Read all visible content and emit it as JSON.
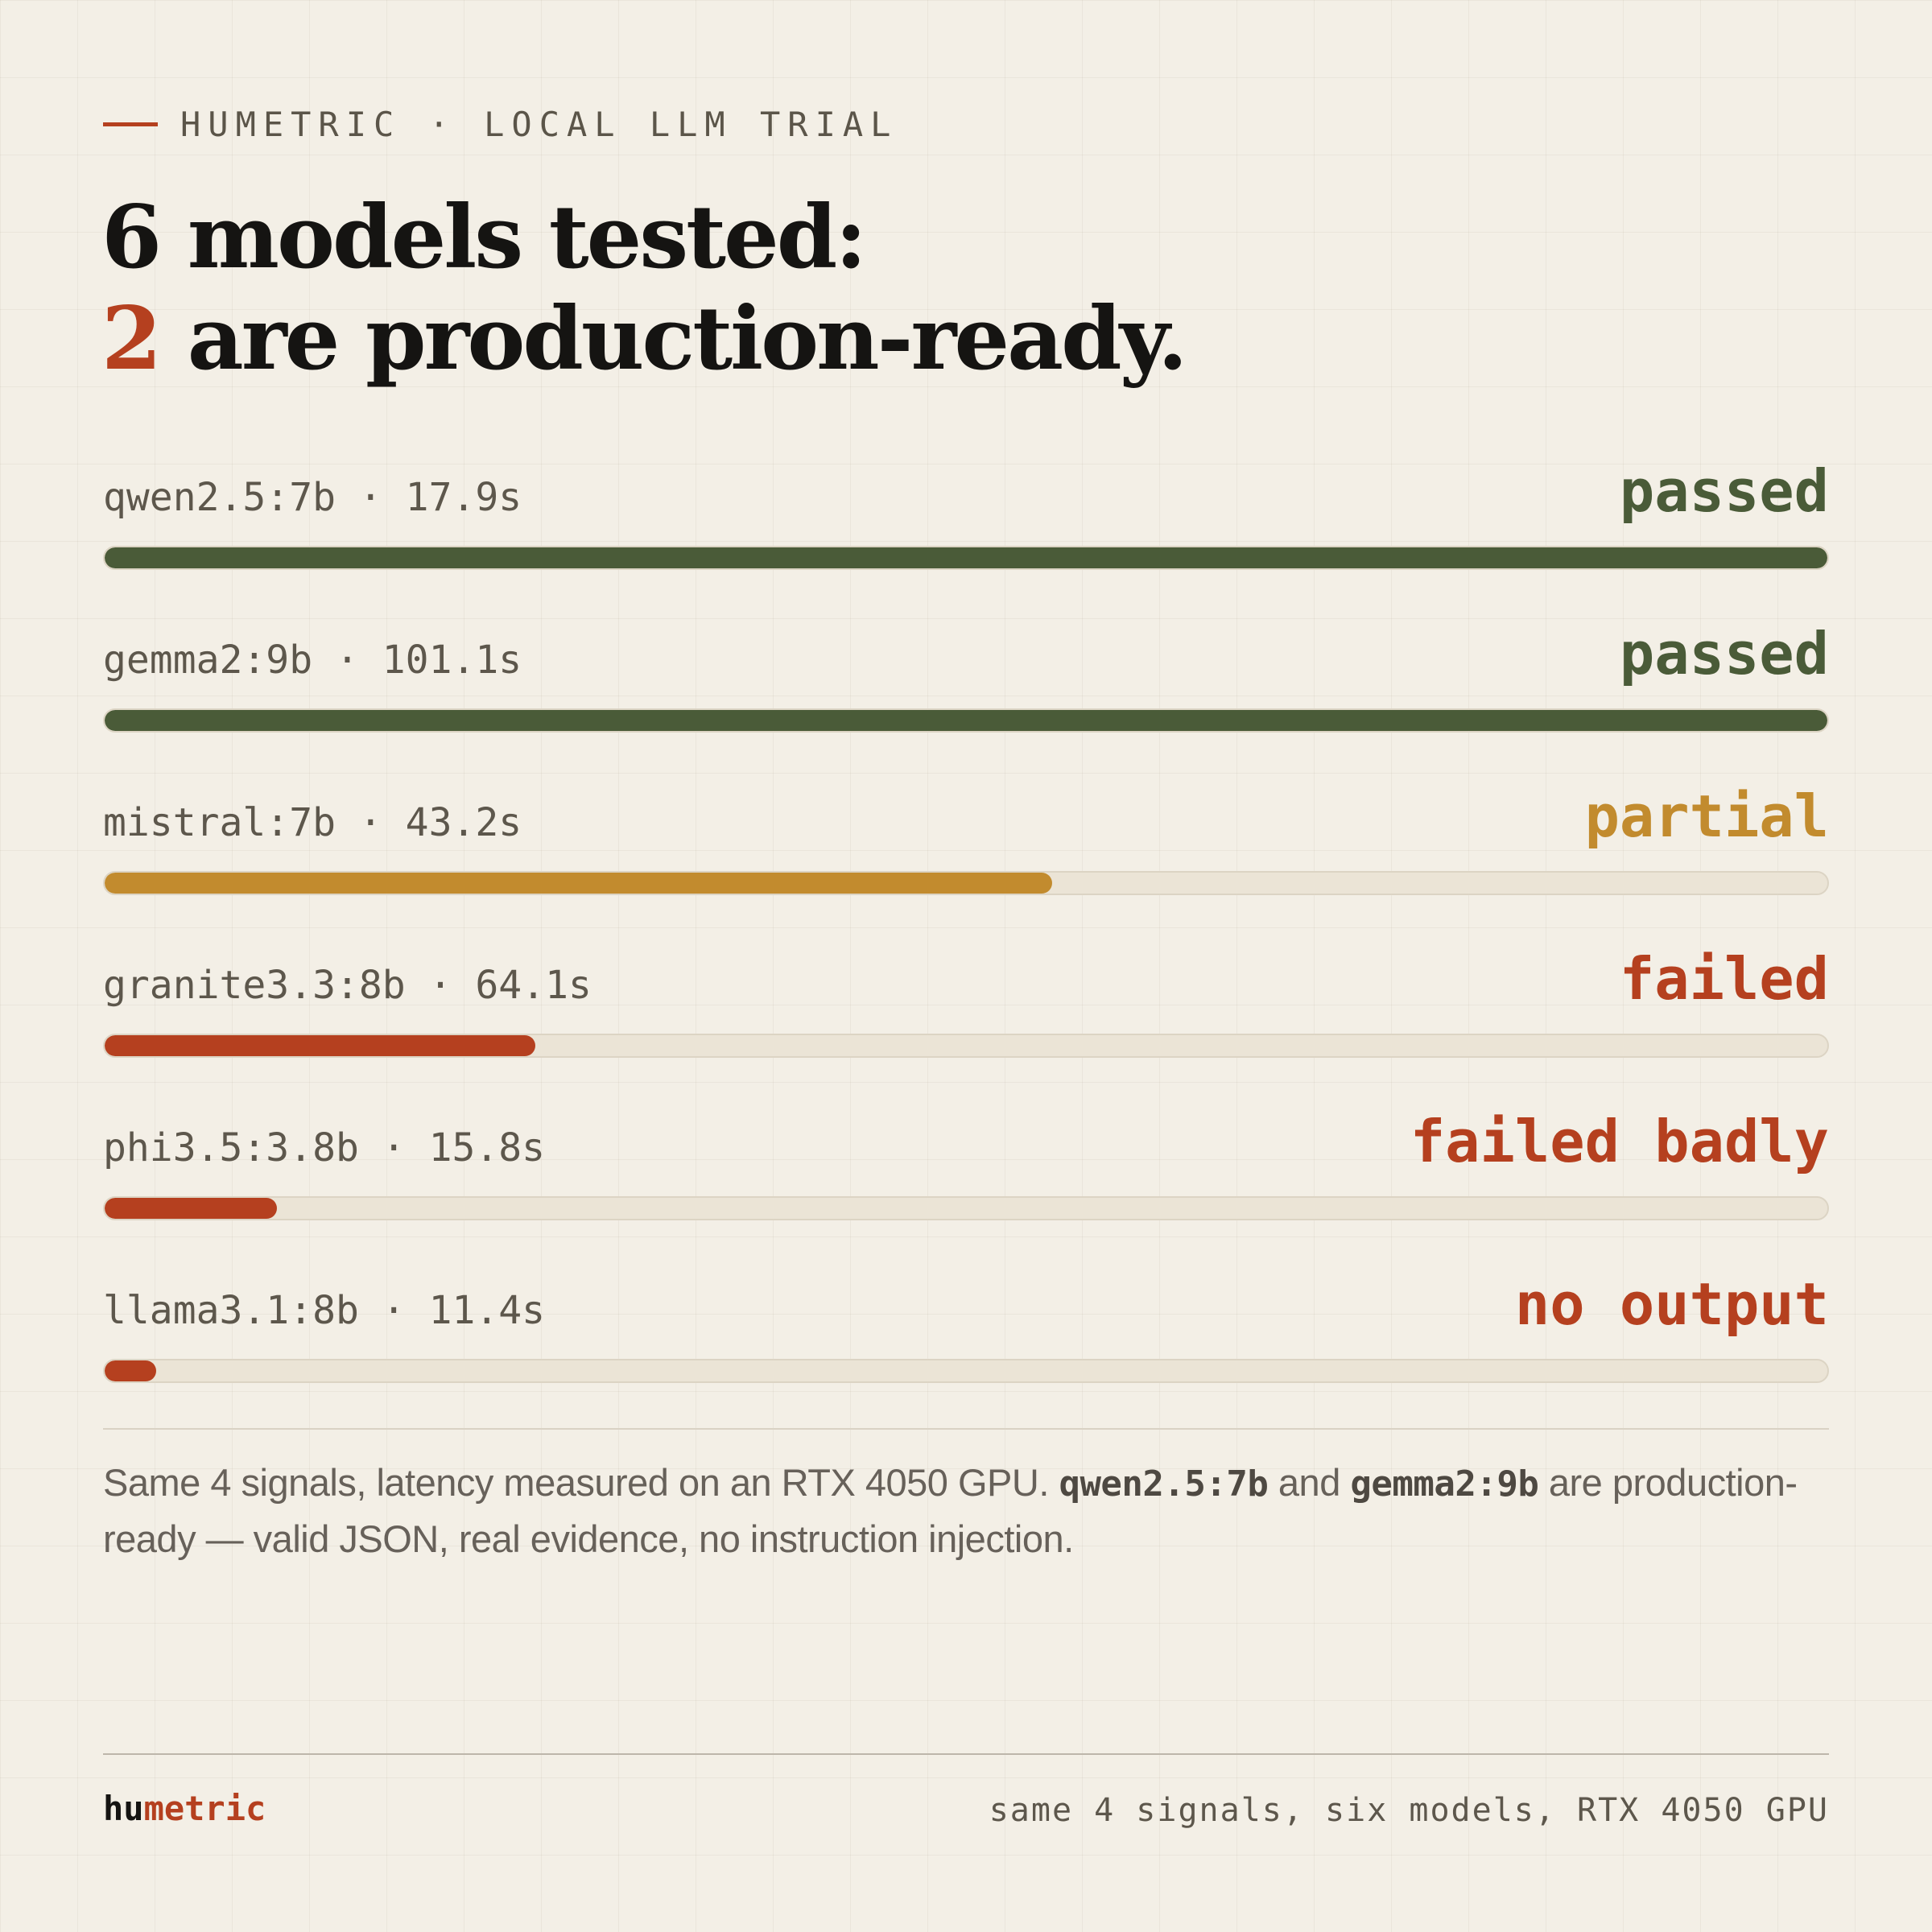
{
  "kicker": "HUMETRIC · LOCAL LLM TRIAL",
  "headline": {
    "line1": "6 models tested:",
    "line2_accent": "2",
    "line2_rest": " are production-ready."
  },
  "colors": {
    "passed": "#4a5b38",
    "partial": "#c28b2e",
    "failed": "#b5401f",
    "track": "#ebe4d6",
    "background": "#f3efe6"
  },
  "chart_data": {
    "type": "bar",
    "orientation": "horizontal",
    "categories": [
      "qwen2.5:7b",
      "gemma2:9b",
      "mistral:7b",
      "granite3.3:8b",
      "phi3.5:3.8b",
      "llama3.1:8b"
    ],
    "values": [
      1.0,
      1.0,
      0.55,
      0.25,
      0.1,
      0.03
    ],
    "latency": [
      "17.9s",
      "101.1s",
      "43.2s",
      "64.1s",
      "15.8s",
      "11.4s"
    ],
    "labels": [
      "qwen2.5:7b · 17.9s",
      "gemma2:9b · 101.1s",
      "mistral:7b · 43.2s",
      "granite3.3:8b · 64.1s",
      "phi3.5:3.8b · 15.8s",
      "llama3.1:8b · 11.4s"
    ],
    "status": [
      "passed",
      "passed",
      "partial",
      "failed",
      "failed badly",
      "no output"
    ],
    "status_colors": [
      "#4a5b38",
      "#4a5b38",
      "#c28b2e",
      "#b5401f",
      "#b5401f",
      "#b5401f"
    ],
    "xlim": [
      0,
      1
    ]
  },
  "note": {
    "part1": "Same 4 signals, latency measured on an RTX 4050 GPU. ",
    "code1": "qwen2.5:7b",
    "part2": " and ",
    "code2": "gemma2:9b",
    "part3": " are production-ready — valid JSON, real evidence, no instruction injection."
  },
  "footer": {
    "brand_a": "hu",
    "brand_b": "metric",
    "caption": "same 4 signals, six models, RTX 4050 GPU"
  }
}
